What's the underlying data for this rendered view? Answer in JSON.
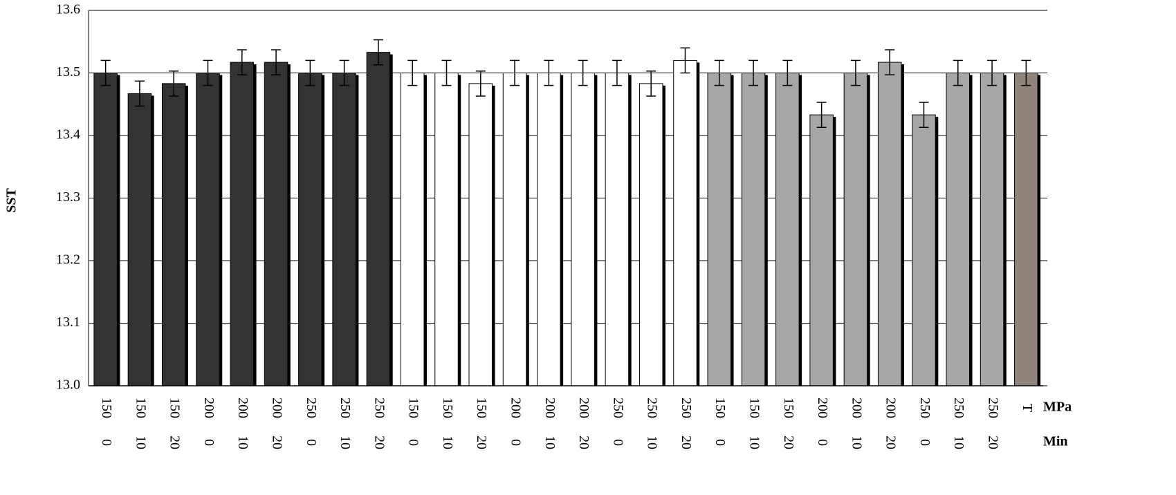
{
  "chart_data": {
    "type": "bar",
    "y_label": "SST",
    "ylim": [
      13.0,
      13.6
    ],
    "yticks": [
      {
        "value": 13,
        "label": "13.0"
      },
      13.1,
      13.2,
      13.3,
      13.4,
      13.5,
      13.6
    ],
    "grid": true,
    "category_rows": [
      {
        "name": "MPa",
        "labels": [
          "150",
          "150",
          "150",
          "200",
          "200",
          "200",
          "250",
          "250",
          "250",
          "150",
          "150",
          "150",
          "200",
          "200",
          "200",
          "250",
          "250",
          "250",
          "150",
          "150",
          "150",
          "200",
          "200",
          "200",
          "250",
          "250",
          "250",
          "T"
        ]
      },
      {
        "name": "Min",
        "labels": [
          "0",
          "10",
          "20",
          "0",
          "10",
          "20",
          "0",
          "10",
          "20",
          "0",
          "10",
          "20",
          "0",
          "10",
          "20",
          "0",
          "10",
          "20",
          "0",
          "10",
          "20",
          "0",
          "10",
          "20",
          "0",
          "10",
          "20",
          null
        ]
      }
    ],
    "values": [
      13.5,
      13.467,
      13.483,
      13.5,
      13.517,
      13.517,
      13.5,
      13.5,
      13.533,
      13.5,
      13.5,
      13.483,
      13.5,
      13.5,
      13.5,
      13.5,
      13.483,
      13.52,
      13.5,
      13.5,
      13.5,
      13.433,
      13.5,
      13.517,
      13.433,
      13.5,
      13.5,
      13.5
    ],
    "errors": [
      0.02,
      0.02,
      0.02,
      0.02,
      0.02,
      0.02,
      0.02,
      0.02,
      0.02,
      0.02,
      0.02,
      0.02,
      0.02,
      0.02,
      0.02,
      0.02,
      0.02,
      0.02,
      0.02,
      0.02,
      0.02,
      0.02,
      0.02,
      0.02,
      0.02,
      0.02,
      0.02,
      0.02
    ],
    "colors": [
      "#333333",
      "#333333",
      "#333333",
      "#333333",
      "#333333",
      "#333333",
      "#333333",
      "#333333",
      "#333333",
      "#ffffff",
      "#ffffff",
      "#ffffff",
      "#ffffff",
      "#ffffff",
      "#ffffff",
      "#ffffff",
      "#ffffff",
      "#ffffff",
      "#a6a6a6",
      "#a6a6a6",
      "#a6a6a6",
      "#a6a6a6",
      "#a6a6a6",
      "#a6a6a6",
      "#a6a6a6",
      "#a6a6a6",
      "#a6a6a6",
      "#8f857b"
    ]
  }
}
